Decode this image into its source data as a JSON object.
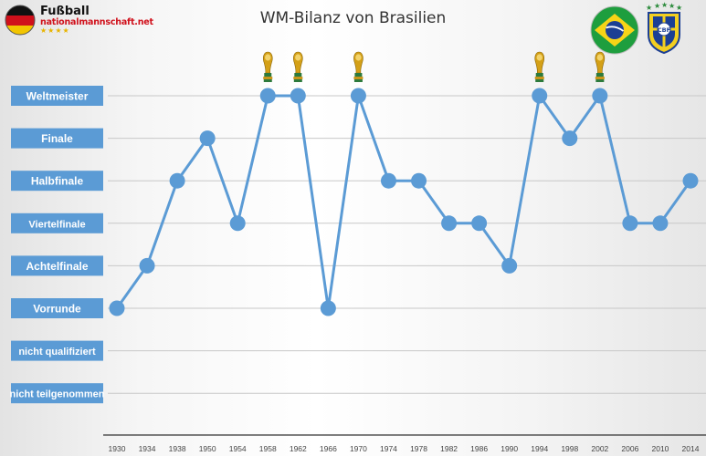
{
  "logo": {
    "title": "Fußball",
    "subtitle": "nationalmannschaft.net",
    "stars": "★★★★"
  },
  "flag_icon": "brazil-flag-icon",
  "crest_icon": "cbf-crest-icon",
  "crest_text": "CBF",
  "trophy_icon": "world-cup-trophy-icon",
  "colors": {
    "line": "#5b9bd5",
    "marker": "#5b9bd5",
    "label_box": "#5b9bd5",
    "label_text": "#ffffff",
    "gridline": "#c8c8c8"
  },
  "chart_data": {
    "type": "line",
    "title": "WM-Bilanz von Brasilien",
    "xlabel": "",
    "ylabel": "",
    "grid": true,
    "categories": [
      "1930",
      "1934",
      "1938",
      "1950",
      "1954",
      "1958",
      "1962",
      "1966",
      "1970",
      "1974",
      "1978",
      "1982",
      "1986",
      "1990",
      "1994",
      "1998",
      "2002",
      "2006",
      "2010",
      "2014"
    ],
    "y_levels": [
      "nicht teilgenommen",
      "nicht qualifiziert",
      "Vorrunde",
      "Achtelfinale",
      "Viertelfinale",
      "Halbfinale",
      "Finale",
      "Weltmeister"
    ],
    "values": [
      "Vorrunde",
      "Achtelfinale",
      "Halbfinale",
      "Finale",
      "Viertelfinale",
      "Weltmeister",
      "Weltmeister",
      "Vorrunde",
      "Weltmeister",
      "Halbfinale",
      "Halbfinale",
      "Viertelfinale",
      "Viertelfinale",
      "Achtelfinale",
      "Weltmeister",
      "Finale",
      "Weltmeister",
      "Viertelfinale",
      "Viertelfinale",
      "Halbfinale"
    ],
    "titles_marked_with_trophy": [
      "1958",
      "1962",
      "1970",
      "1994",
      "2002"
    ]
  }
}
